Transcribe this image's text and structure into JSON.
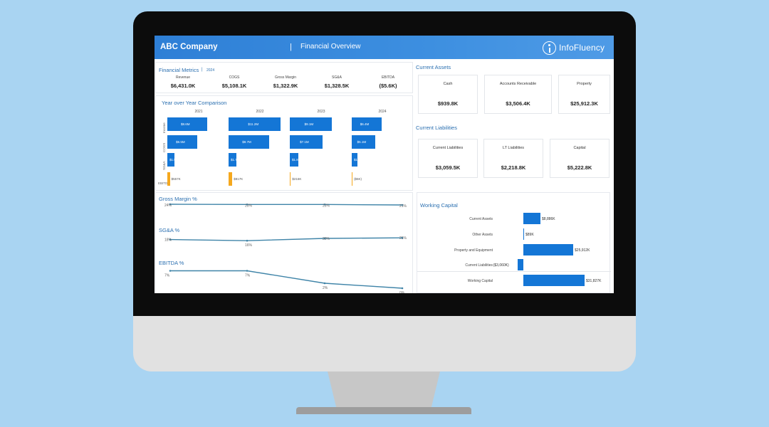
{
  "header": {
    "company": "ABC Company",
    "separator": "|",
    "subtitle": "Financial Overview",
    "logo_text": "InfoFluency"
  },
  "financial_metrics": {
    "title": "Financial Metrics",
    "separator": "|",
    "year": "2024",
    "metrics": [
      {
        "label": "Revenue",
        "value": "$6,431.0K"
      },
      {
        "label": "COGS",
        "value": "$5,108.1K"
      },
      {
        "label": "Gross Margin",
        "value": "$1,322.9K"
      },
      {
        "label": "SG&A",
        "value": "$1,328.5K"
      },
      {
        "label": "EBITDA",
        "value": "($5.6K)"
      }
    ]
  },
  "yoy": {
    "title": "Year over Year Comparison",
    "years": [
      "2021",
      "2022",
      "2023",
      "2024"
    ],
    "row_labels": [
      "Income",
      "COGS",
      "SG&A",
      "EBITDA"
    ],
    "rows": [
      {
        "label": "Income",
        "values": [
          "$8.6M",
          "$11.2M",
          "$9.1M",
          "$6.4M"
        ]
      },
      {
        "label": "COGS",
        "values": [
          "$6.5M",
          "$8.7M",
          "$7.1M",
          "$5.1M"
        ]
      },
      {
        "label": "SG&A",
        "values": [
          "$1.5M",
          "$1.7M",
          "$1.8M",
          "$1.3M"
        ]
      },
      {
        "label": "EBITDA",
        "values": [
          "$557K",
          "$817K",
          "$216K",
          "($6K)"
        ]
      }
    ]
  },
  "gross_margin": {
    "title": "Gross Margin %",
    "labels": [
      "24%",
      "23%",
      "23%",
      "21%"
    ]
  },
  "sga": {
    "title": "SG&A %",
    "labels": [
      "18%",
      "16%",
      "20%",
      "21%"
    ]
  },
  "ebitda": {
    "title": "EBITDA %",
    "labels": [
      "7%",
      "7%",
      "2%",
      "0%"
    ]
  },
  "current_assets": {
    "title": "Current Assets",
    "cards": [
      {
        "label": "Cash",
        "value": "$939.8K"
      },
      {
        "label": "Accounts Receivable",
        "value": "$3,506.4K"
      },
      {
        "label": "Property",
        "value": "$25,912.3K"
      }
    ]
  },
  "current_liabilities": {
    "title": "Current Liabilities",
    "cards": [
      {
        "label": "Current Liabilities",
        "value": "$3,059.5K"
      },
      {
        "label": "LT Liabilities",
        "value": "$2,218.8K"
      },
      {
        "label": "Capital",
        "value": "$5,222.8K"
      }
    ]
  },
  "working_capital": {
    "title": "Working Capital",
    "rows": [
      {
        "label": "Current Assets",
        "value": "$8,886K"
      },
      {
        "label": "Other Assets",
        "value": "$89K"
      },
      {
        "label": "Property and Equipment",
        "value": "$25,912K"
      },
      {
        "label": "Current Liabilities",
        "value": "($3,060K)"
      },
      {
        "label": "Working Capital",
        "value": "$31,827K"
      }
    ]
  },
  "chart_data": [
    {
      "type": "bar",
      "title": "Year over Year Comparison",
      "categories": [
        "2021",
        "2022",
        "2023",
        "2024"
      ],
      "series": [
        {
          "name": "Income",
          "values": [
            8.6,
            11.2,
            9.1,
            6.4
          ],
          "unit": "$M"
        },
        {
          "name": "COGS",
          "values": [
            6.5,
            8.7,
            7.1,
            5.1
          ],
          "unit": "$M"
        },
        {
          "name": "SG&A",
          "values": [
            1.5,
            1.7,
            1.8,
            1.3
          ],
          "unit": "$M"
        },
        {
          "name": "EBITDA",
          "values": [
            557,
            817,
            216,
            -6
          ],
          "unit": "$K"
        }
      ]
    },
    {
      "type": "line",
      "title": "Gross Margin %",
      "values": [
        24,
        23,
        23,
        21
      ],
      "ylim": [
        0,
        30
      ]
    },
    {
      "type": "line",
      "title": "SG&A %",
      "values": [
        18,
        16,
        20,
        21
      ],
      "ylim": [
        10,
        25
      ]
    },
    {
      "type": "line",
      "title": "EBITDA %",
      "values": [
        7,
        7,
        2,
        0
      ],
      "ylim": [
        0,
        8
      ]
    },
    {
      "type": "bar",
      "title": "Working Capital",
      "categories": [
        "Current Assets",
        "Other Assets",
        "Property and Equipment",
        "Current Liabilities",
        "Working Capital"
      ],
      "values": [
        8886,
        89,
        25912,
        -3060,
        31827
      ],
      "unit": "$K"
    }
  ]
}
